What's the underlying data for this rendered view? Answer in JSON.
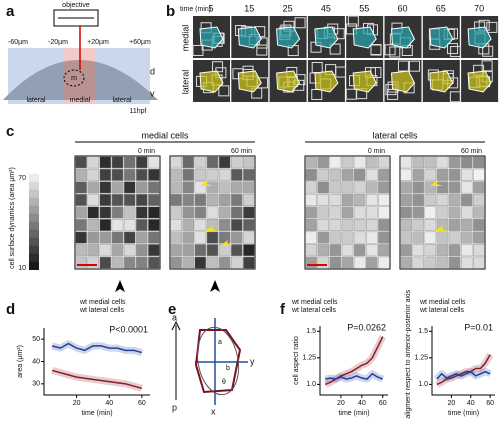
{
  "panel_a": {
    "letter": "a",
    "objective": "objective",
    "positions": [
      "-60µm",
      "-20µm",
      "+20µm",
      "+60µm"
    ],
    "d": "d",
    "v": "v",
    "regions": [
      "lateral",
      "medial",
      "lateral"
    ],
    "m": "m",
    "stage": "11hpf"
  },
  "panel_b": {
    "letter": "b",
    "time_label": "time (min)",
    "times": [
      "5",
      "15",
      "25",
      "45",
      "55",
      "60",
      "65",
      "70"
    ],
    "rows": [
      "medial",
      "lateral"
    ]
  },
  "panel_c": {
    "letter": "c",
    "groups": [
      "medial cells",
      "lateral cells"
    ],
    "times": [
      "0 min",
      "60 min",
      "0 min",
      "60 min"
    ],
    "colorbar_label": "cell surface dynamics (area µm²)",
    "colorbar_ticks": [
      "70",
      "10"
    ]
  },
  "panel_d": {
    "letter": "d"
  },
  "panel_e": {
    "letter": "e",
    "labels": [
      "a",
      "p",
      "y",
      "x",
      "a",
      "b",
      "θ"
    ]
  },
  "panel_f": {
    "letter": "f"
  },
  "chart_data": [
    {
      "type": "line",
      "annotation": "P<0.0001",
      "ylabel": "area (µm²)",
      "xlabel": "time (min)",
      "x": [
        5,
        10,
        15,
        20,
        25,
        30,
        35,
        40,
        45,
        50,
        55,
        60
      ],
      "series": [
        {
          "name": "wt medial cells",
          "color": "#8b1a2b",
          "values": [
            36,
            35,
            34,
            33,
            32.5,
            32,
            31.5,
            31,
            30.5,
            30,
            29,
            28
          ]
        },
        {
          "name": "wt lateral cells",
          "color": "#1f3f9a",
          "values": [
            47,
            46,
            48,
            46,
            45,
            47,
            47,
            46,
            46,
            45,
            45,
            44
          ]
        }
      ],
      "xlim": [
        0,
        65
      ],
      "ylim": [
        25,
        55
      ],
      "xticks": [
        20,
        40,
        60
      ],
      "yticks": [
        30,
        40,
        50
      ]
    },
    {
      "type": "line",
      "annotation": "P=0.0262",
      "ylabel": "cell aspect ratio",
      "xlabel": "time (min)",
      "x": [
        5,
        10,
        15,
        20,
        25,
        30,
        35,
        40,
        45,
        50,
        55,
        60
      ],
      "series": [
        {
          "name": "wt medial cells",
          "color": "#8b1a2b",
          "values": [
            1.0,
            1.02,
            1.05,
            1.08,
            1.1,
            1.12,
            1.15,
            1.18,
            1.2,
            1.25,
            1.35,
            1.45
          ]
        },
        {
          "name": "wt lateral cells",
          "color": "#1f3f9a",
          "values": [
            1.05,
            1.06,
            1.05,
            1.07,
            1.05,
            1.06,
            1.08,
            1.06,
            1.05,
            1.1,
            1.07,
            1.05
          ]
        }
      ],
      "xlim": [
        0,
        65
      ],
      "ylim": [
        0.9,
        1.55
      ],
      "xticks": [
        20,
        40,
        60
      ],
      "yticks": [
        {
          "value": 1,
          "label": "1.0"
        },
        1.25,
        1.5
      ]
    },
    {
      "type": "line",
      "annotation": "P=0.01",
      "ylabel": "cell aligment respect to anterior-posterior axis",
      "xlabel": "time (min)",
      "x": [
        5,
        10,
        15,
        20,
        25,
        30,
        35,
        40,
        45,
        50,
        55,
        60
      ],
      "series": [
        {
          "name": "wt medial cells",
          "color": "#8b1a2b",
          "values": [
            1.0,
            1.02,
            1.05,
            1.06,
            1.08,
            1.1,
            1.12,
            1.12,
            1.15,
            1.15,
            1.2,
            1.28
          ]
        },
        {
          "name": "wt lateral cells",
          "color": "#1f3f9a",
          "values": [
            1.05,
            1.1,
            1.06,
            1.08,
            1.1,
            1.08,
            1.1,
            1.12,
            1.08,
            1.1,
            1.12,
            1.1
          ]
        }
      ],
      "xlim": [
        0,
        65
      ],
      "ylim": [
        0.9,
        1.55
      ],
      "xticks": [
        20,
        40,
        60
      ],
      "yticks": [
        {
          "value": 1,
          "label": "1.0"
        },
        1.25,
        1.5
      ]
    }
  ]
}
